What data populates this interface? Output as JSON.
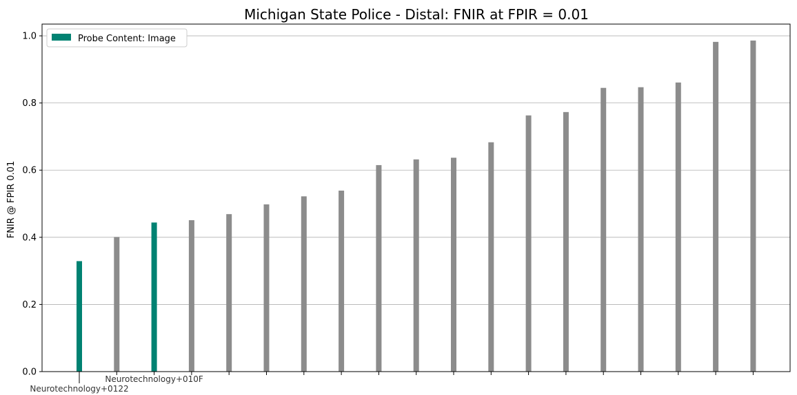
{
  "chart_data": {
    "type": "bar",
    "title": "Michigan State Police - Distal: FNIR at FPIR = 0.01",
    "xlabel": "",
    "ylabel": "FNIR @ FPIR 0.01",
    "ylim": [
      0,
      1.035
    ],
    "yticks": [
      "0.0",
      "0.2",
      "0.4",
      "0.6",
      "0.8",
      "1.0"
    ],
    "ytick_values": [
      0,
      0.2,
      0.4,
      0.6,
      0.8,
      1.0
    ],
    "grid": "horizontal",
    "legend": {
      "placement": "top-left",
      "entries": [
        {
          "label": "Probe Content: Image",
          "color": "#008272"
        }
      ]
    },
    "categories": [
      "Neurotechnology+0122",
      "",
      "Neurotechnology+010F",
      "",
      "",
      "",
      "",
      "",
      "",
      "",
      "",
      "",
      "",
      "",
      "",
      "",
      "",
      "",
      ""
    ],
    "values": [
      0.329,
      0.401,
      0.444,
      0.451,
      0.469,
      0.498,
      0.522,
      0.539,
      0.615,
      0.632,
      0.637,
      0.683,
      0.763,
      0.773,
      0.845,
      0.847,
      0.861,
      0.982,
      0.986
    ],
    "highlighted": [
      true,
      false,
      true,
      false,
      false,
      false,
      false,
      false,
      false,
      false,
      false,
      false,
      false,
      false,
      false,
      false,
      false,
      false,
      false
    ],
    "colors": {
      "highlight": "#008272",
      "other": "#8c8c8c"
    }
  }
}
